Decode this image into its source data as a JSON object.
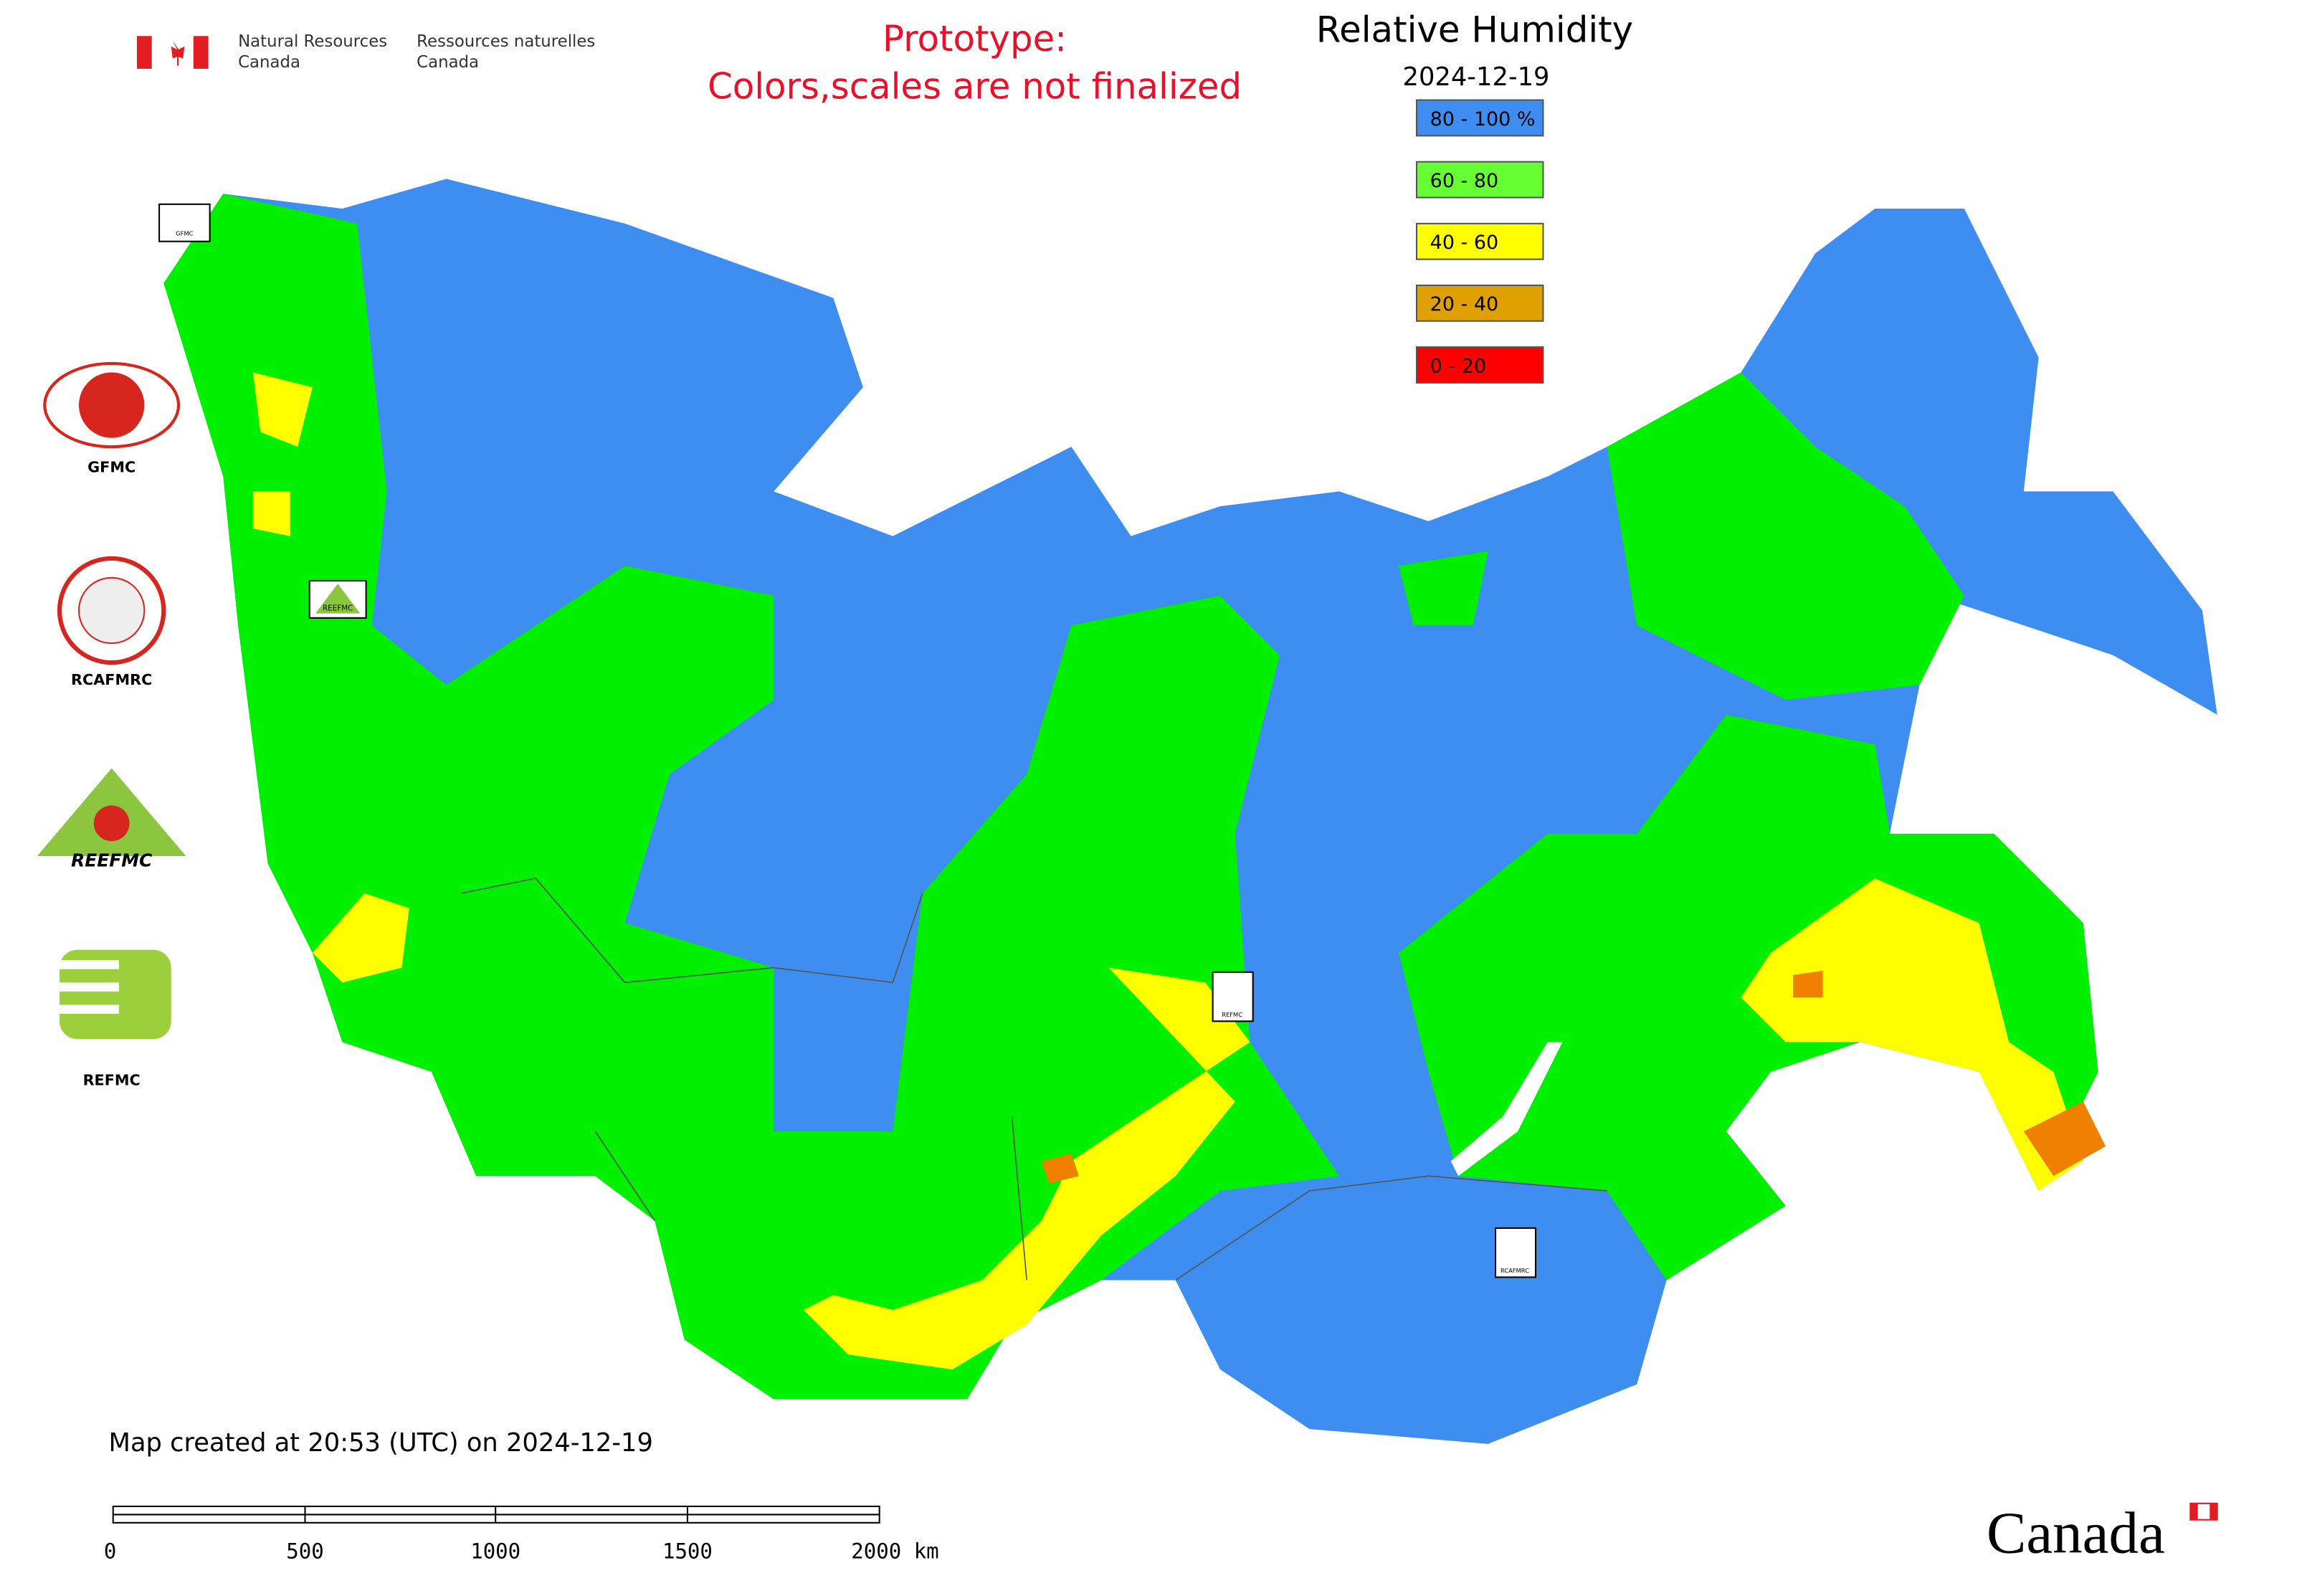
{
  "header": {
    "agency_en": [
      "Natural Resources",
      "Canada"
    ],
    "agency_fr": [
      "Ressources naturelles",
      "Canada"
    ],
    "notice": [
      "Prototype:",
      "Colors,scales are not finalized"
    ]
  },
  "map": {
    "title": "Relative Humidity",
    "date": "2024-12-19"
  },
  "legend": [
    {
      "label": "80 - 100 %",
      "color": "#3d8ef0"
    },
    {
      "label": "60 - 80",
      "color": "#66ff33"
    },
    {
      "label": "40 - 60",
      "color": "#ffff00"
    },
    {
      "label": "20 - 40",
      "color": "#e0a000"
    },
    {
      "label": "0 - 20",
      "color": "#ff0000"
    }
  ],
  "logos": [
    "GFMC",
    "RCAFMRC",
    "REEFMC",
    "REFMC"
  ],
  "footer": {
    "created": "Map created at 20:53 (UTC) on 2024-12-19",
    "scale": [
      "0",
      "500",
      "1000",
      "1500",
      "2000 km"
    ],
    "wordmark": "Canada"
  }
}
